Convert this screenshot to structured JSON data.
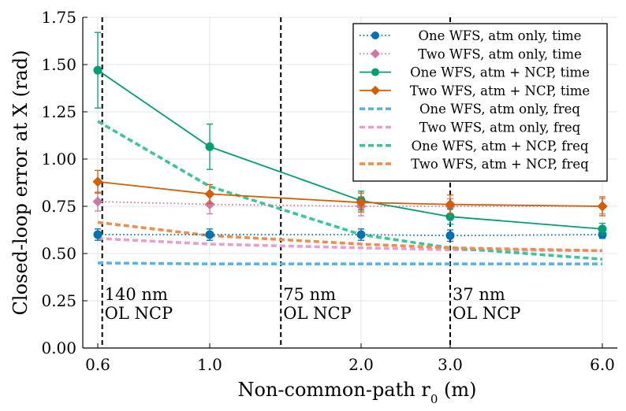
{
  "chart_data": {
    "type": "line",
    "xlabel": "Non-common-path r",
    "xlabel_sub": "0",
    "xlabel_unit": " (m)",
    "ylabel": "Closed-loop error at X (rad)",
    "ylim": [
      0,
      1.75
    ],
    "x_categories": [
      "0.6",
      "1.0",
      "2.0",
      "3.0",
      "6.0"
    ],
    "y_ticks": [
      "0.00",
      "0.25",
      "0.50",
      "0.75",
      "1.00",
      "1.25",
      "1.50",
      "1.75"
    ],
    "grid": true,
    "legend_position": "top-right",
    "annotations": [
      {
        "at": 0.04,
        "line1": "140 nm",
        "line2": "OL NCP"
      },
      {
        "at": 1.47,
        "line1": "75 nm",
        "line2": "OL NCP"
      },
      {
        "at": 3.0,
        "line1": "37 nm",
        "line2": "OL NCP"
      }
    ],
    "series": [
      {
        "name": "One WFS, atm only, time",
        "color": "#0072B2",
        "style": "dotted",
        "marker": "circle",
        "values": [
          0.6,
          0.6,
          0.6,
          0.595,
          0.6
        ],
        "errors": [
          0.03,
          0.03,
          0.03,
          0.03,
          0.02
        ]
      },
      {
        "name": "Two WFS, atm only, time",
        "color": "#CC79A7",
        "style": "dotted",
        "marker": "diamond",
        "values": [
          0.775,
          0.76,
          0.75,
          0.75,
          0.75
        ],
        "errors": [
          0.05,
          0.05,
          0.05,
          0.04,
          0.04
        ]
      },
      {
        "name": "One WFS, atm + NCP, time",
        "color": "#009E73",
        "style": "solid",
        "marker": "circle",
        "values": [
          1.47,
          1.065,
          0.78,
          0.695,
          0.63
        ],
        "errors": [
          0.2,
          0.12,
          0.05,
          0.04,
          0.03
        ]
      },
      {
        "name": "Two WFS, atm + NCP, time",
        "color": "#D55E00",
        "style": "solid",
        "marker": "diamond",
        "values": [
          0.88,
          0.815,
          0.77,
          0.76,
          0.75
        ],
        "errors": [
          0.06,
          0.05,
          0.05,
          0.05,
          0.05
        ]
      },
      {
        "name": "One WFS, atm only, freq",
        "color": "#56B4E9",
        "style": "dash",
        "marker": "none",
        "values": [
          0.45,
          0.445,
          0.445,
          0.445,
          0.445
        ]
      },
      {
        "name": "Two WFS, atm only, freq",
        "color": "#E69FD0",
        "style": "dash",
        "marker": "none",
        "values": [
          0.58,
          0.55,
          0.53,
          0.52,
          0.515
        ]
      },
      {
        "name": "One WFS, atm + NCP, freq",
        "color": "#3DC59A",
        "style": "dash",
        "marker": "none",
        "values": [
          1.2,
          0.855,
          0.6,
          0.53,
          0.47
        ]
      },
      {
        "name": "Two WFS, atm + NCP, freq",
        "color": "#EE8E4C",
        "style": "dash",
        "marker": "none",
        "values": [
          0.665,
          0.595,
          0.55,
          0.53,
          0.515
        ]
      }
    ]
  }
}
